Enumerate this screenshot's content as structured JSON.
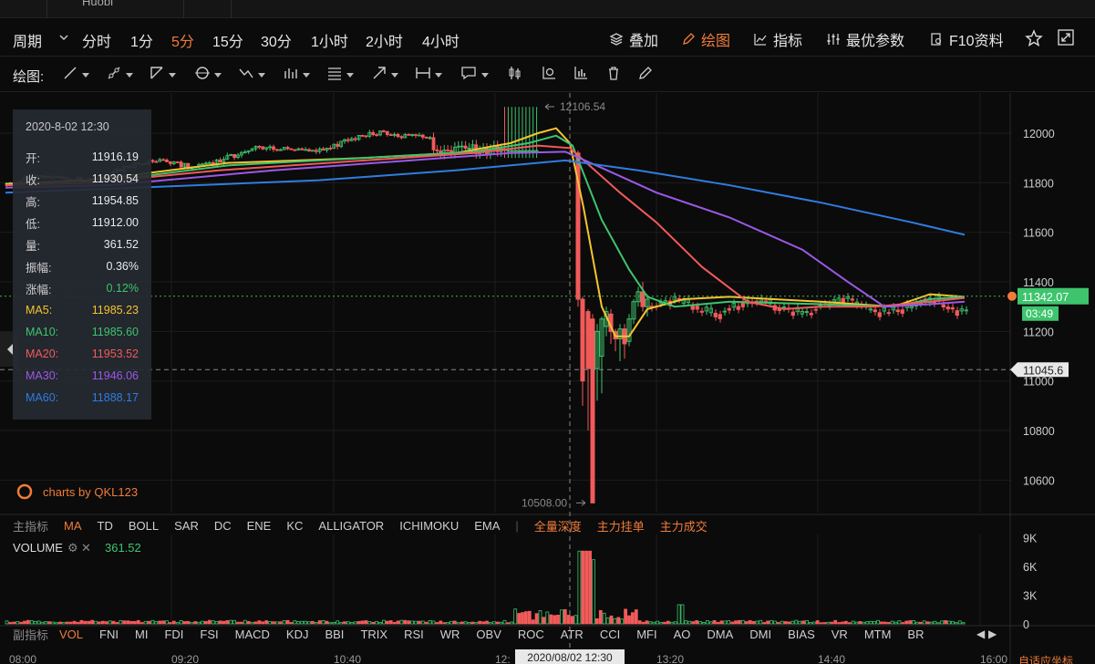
{
  "app": {
    "tab_title": "Huobi"
  },
  "toolbar": {
    "period_label": "周期",
    "intervals": [
      "分时",
      "1分",
      "5分",
      "15分",
      "30分",
      "1小时",
      "2小时",
      "4小时"
    ],
    "active_interval": "5分",
    "overlay_label": "叠加",
    "draw_label": "绘图",
    "indicator_label": "指标",
    "best_params_label": "最优参数",
    "f10_label": "F10资料"
  },
  "draw_toolbar": {
    "label": "绘图:"
  },
  "info_box": {
    "date": "2020-8-02 12:30",
    "rows": [
      {
        "k": "开:",
        "v": "11916.19",
        "color": "#eaeaea"
      },
      {
        "k": "收:",
        "v": "11930.54",
        "color": "#eaeaea"
      },
      {
        "k": "高:",
        "v": "11954.85",
        "color": "#eaeaea"
      },
      {
        "k": "低:",
        "v": "11912.00",
        "color": "#eaeaea"
      },
      {
        "k": "量:",
        "v": "361.52",
        "color": "#eaeaea"
      },
      {
        "k": "振幅:",
        "v": "0.36%",
        "color": "#eaeaea"
      },
      {
        "k": "涨幅:",
        "v": "0.12%",
        "color": "#3ec46d"
      },
      {
        "k": "MA5:",
        "v": "11985.23",
        "color": "#f5c431"
      },
      {
        "k": "MA10:",
        "v": "11985.60",
        "color": "#3ec46d"
      },
      {
        "k": "MA20:",
        "v": "11953.52",
        "color": "#f25a5a"
      },
      {
        "k": "MA30:",
        "v": "11946.06",
        "color": "#9b59e6"
      },
      {
        "k": "MA60:",
        "v": "11888.17",
        "color": "#2f7de1"
      }
    ]
  },
  "price_axis": {
    "ticks": [
      "12000",
      "11800",
      "11600",
      "11400",
      "11200",
      "11000",
      "10800",
      "10600"
    ],
    "current_price": "11342.07",
    "countdown": "03:49",
    "crosshair_price": "11045.6",
    "high_marker": "12106.54",
    "low_marker": "10508.00"
  },
  "watermark": "charts by QKL123",
  "main_indicators": {
    "label": "主指标",
    "items": [
      "MA",
      "TD",
      "BOLL",
      "SAR",
      "DC",
      "ENE",
      "KC",
      "ALLIGATOR",
      "ICHIMOKU",
      "EMA"
    ],
    "active": "MA",
    "extra": [
      "全量深度",
      "主力挂单",
      "主力成交"
    ]
  },
  "volume_panel": {
    "label": "VOLUME",
    "value": "361.52",
    "ticks": [
      "9K",
      "6K",
      "3K",
      "0"
    ]
  },
  "sub_indicators": {
    "label": "副指标",
    "items": [
      "VOL",
      "FNI",
      "MI",
      "FDI",
      "FSI",
      "MACD",
      "KDJ",
      "BBI",
      "TRIX",
      "RSI",
      "WR",
      "OBV",
      "ROC",
      "ATR",
      "CCI",
      "MFI",
      "AO",
      "DMA",
      "DMI",
      "BIAS",
      "VR",
      "MTM",
      "BR"
    ],
    "active": "VOL"
  },
  "time_axis": {
    "labels": [
      "08:00",
      "09:20",
      "10:40",
      "12:",
      "13:20",
      "14:40",
      "16:00"
    ],
    "crosshair_time": "2020/08/02 12:30",
    "auto_fit": "自适应坐标"
  },
  "colors": {
    "up": "#3ec46d",
    "down": "#f25a5a",
    "accent": "#f07c3a",
    "ma5": "#f5c431",
    "ma10": "#3ec46d",
    "ma20": "#f25a5a",
    "ma30": "#9b59e6",
    "ma60": "#2f7de1"
  }
}
